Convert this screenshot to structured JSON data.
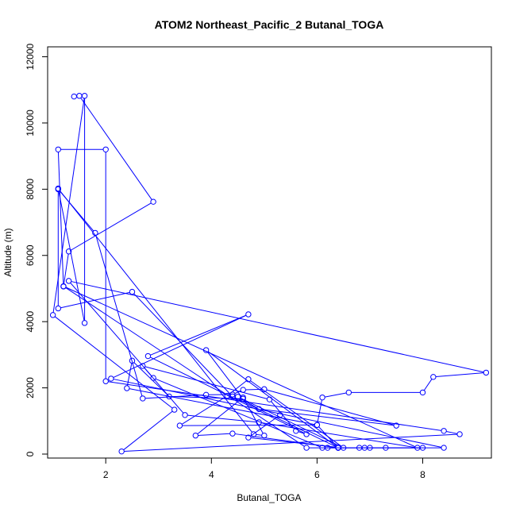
{
  "chart_data": {
    "type": "line",
    "title": "ATOM2 Northeast_Pacific_2 Butanal_TOGA",
    "xlabel": "Butanal_TOGA",
    "ylabel": "Altitude (m)",
    "xlim": [
      0.9,
      9.3
    ],
    "ylim": [
      -120,
      12300
    ],
    "x_ticks": [
      2,
      4,
      6,
      8
    ],
    "y_ticks": [
      0,
      2000,
      4000,
      6000,
      8000,
      10000,
      12000
    ],
    "marker": "open-circle",
    "series": [
      {
        "color": "#0000ff",
        "points": [
          [
            1.4,
            10800
          ],
          [
            1.5,
            10820
          ],
          [
            2.9,
            7620
          ],
          [
            1.3,
            6120
          ],
          [
            1.2,
            5060
          ],
          [
            1.1,
            9200
          ],
          [
            2.0,
            9200
          ],
          [
            2.0,
            2200
          ],
          [
            8.4,
            700
          ],
          [
            8.7,
            600
          ],
          [
            2.3,
            80
          ],
          [
            3.3,
            1340
          ],
          [
            1.0,
            4200
          ],
          [
            1.6,
            10820
          ],
          [
            1.6,
            3960
          ],
          [
            1.1,
            8020
          ],
          [
            4.8,
            600
          ],
          [
            5.0,
            560
          ],
          [
            4.6,
            1710
          ],
          [
            3.7,
            560
          ],
          [
            4.4,
            620
          ],
          [
            6.4,
            190
          ],
          [
            4.4,
            1740
          ],
          [
            2.5,
            4900
          ],
          [
            1.1,
            4400
          ],
          [
            1.1,
            8000
          ],
          [
            1.8,
            6680
          ],
          [
            2.7,
            1680
          ],
          [
            3.9,
            1790
          ],
          [
            4.4,
            1800
          ],
          [
            4.6,
            1940
          ],
          [
            5.0,
            1960
          ],
          [
            7.5,
            860
          ],
          [
            4.9,
            1360
          ],
          [
            4.5,
            1730
          ],
          [
            6.5,
            190
          ],
          [
            4.7,
            2260
          ],
          [
            4.3,
            1760
          ],
          [
            3.4,
            860
          ],
          [
            6.0,
            880
          ],
          [
            6.4,
            190
          ],
          [
            3.9,
            3140
          ],
          [
            4.6,
            1670
          ],
          [
            3.2,
            1740
          ],
          [
            2.5,
            2820
          ],
          [
            2.4,
            1990
          ],
          [
            6.0,
            880
          ],
          [
            6.1,
            1710
          ],
          [
            6.6,
            1860
          ],
          [
            8.0,
            1860
          ],
          [
            8.2,
            2330
          ],
          [
            9.2,
            2460
          ],
          [
            1.3,
            5230
          ],
          [
            2.9,
            2300
          ],
          [
            6.1,
            190
          ],
          [
            6.8,
            190
          ],
          [
            7.0,
            190
          ],
          [
            8.4,
            190
          ],
          [
            2.1,
            2280
          ],
          [
            4.7,
            4220
          ],
          [
            2.8,
            2960
          ],
          [
            5.8,
            600
          ],
          [
            5.6,
            700
          ],
          [
            5.1,
            1650
          ],
          [
            2.7,
            2660
          ],
          [
            3.5,
            1180
          ],
          [
            4.9,
            960
          ],
          [
            7.9,
            190
          ],
          [
            1.2,
            5070
          ],
          [
            5.8,
            190
          ],
          [
            6.4,
            190
          ],
          [
            6.9,
            190
          ],
          [
            7.3,
            190
          ],
          [
            8.0,
            190
          ],
          [
            6.4,
            190
          ],
          [
            6.2,
            190
          ],
          [
            6.4,
            200
          ],
          [
            4.7,
            500
          ],
          [
            5.3,
            1180
          ]
        ]
      }
    ]
  }
}
